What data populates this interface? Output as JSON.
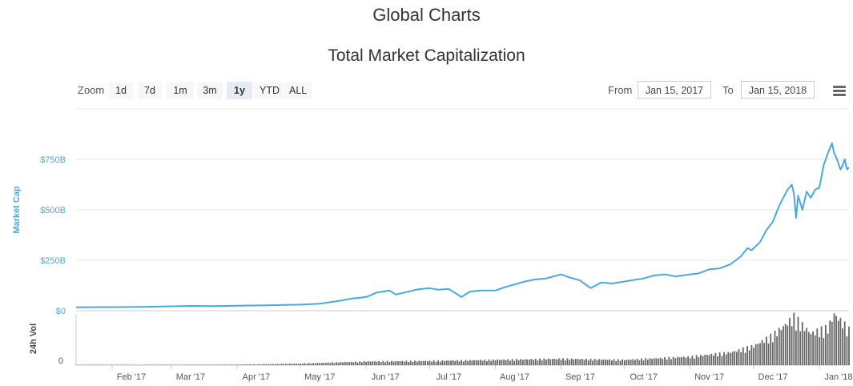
{
  "page": {
    "title": "Global Charts"
  },
  "toolbar": {
    "zoom_label": "Zoom",
    "zoom_buttons": [
      "1d",
      "7d",
      "1m",
      "3m",
      "1y",
      "YTD",
      "ALL"
    ],
    "active_zoom": "1y",
    "from_label": "From",
    "from_value": "Jan 15, 2017",
    "to_label": "To",
    "to_value": "Jan 15, 2018"
  },
  "colors": {
    "market_cap": "#4BA8DE",
    "volume": "#666666"
  },
  "chart_data": {
    "type": "line",
    "title": "Total Market Capitalization",
    "ylabel": "Market Cap",
    "y2label": "24h Vol",
    "ylim": [
      0,
      1000
    ],
    "yticks": [
      {
        "value": 0,
        "label": "$0"
      },
      {
        "value": 250,
        "label": "$250B"
      },
      {
        "value": 500,
        "label": "$500B"
      },
      {
        "value": 750,
        "label": "$750B"
      }
    ],
    "vol_tick_label": "0",
    "x_range": [
      "2017-01-15",
      "2018-01-15"
    ],
    "xticks": [
      {
        "date": "2017-02-01",
        "label": "Feb '17"
      },
      {
        "date": "2017-03-01",
        "label": "Mar '17"
      },
      {
        "date": "2017-04-01",
        "label": "Apr '17"
      },
      {
        "date": "2017-05-01",
        "label": "May '17"
      },
      {
        "date": "2017-06-01",
        "label": "Jun '17"
      },
      {
        "date": "2017-07-01",
        "label": "Jul '17"
      },
      {
        "date": "2017-08-01",
        "label": "Aug '17"
      },
      {
        "date": "2017-09-01",
        "label": "Sep '17"
      },
      {
        "date": "2017-10-01",
        "label": "Oct '17"
      },
      {
        "date": "2017-11-01",
        "label": "Nov '17"
      },
      {
        "date": "2017-12-01",
        "label": "Dec '17"
      },
      {
        "date": "2018-01-01",
        "label": "Jan '18"
      }
    ],
    "market_cap": [
      [
        "2017-01-15",
        17
      ],
      [
        "2017-02-01",
        18
      ],
      [
        "2017-02-15",
        19
      ],
      [
        "2017-03-01",
        22
      ],
      [
        "2017-03-10",
        24
      ],
      [
        "2017-03-20",
        23
      ],
      [
        "2017-04-01",
        25
      ],
      [
        "2017-04-15",
        27
      ],
      [
        "2017-05-01",
        30
      ],
      [
        "2017-05-10",
        35
      ],
      [
        "2017-05-20",
        50
      ],
      [
        "2017-05-25",
        60
      ],
      [
        "2017-06-01",
        68
      ],
      [
        "2017-06-06",
        90
      ],
      [
        "2017-06-12",
        100
      ],
      [
        "2017-06-15",
        80
      ],
      [
        "2017-06-20",
        92
      ],
      [
        "2017-06-25",
        105
      ],
      [
        "2017-07-01",
        112
      ],
      [
        "2017-07-05",
        104
      ],
      [
        "2017-07-10",
        108
      ],
      [
        "2017-07-16",
        68
      ],
      [
        "2017-07-20",
        95
      ],
      [
        "2017-07-25",
        100
      ],
      [
        "2017-08-01",
        100
      ],
      [
        "2017-08-05",
        115
      ],
      [
        "2017-08-10",
        130
      ],
      [
        "2017-08-15",
        145
      ],
      [
        "2017-08-20",
        155
      ],
      [
        "2017-08-25",
        160
      ],
      [
        "2017-09-01",
        180
      ],
      [
        "2017-09-05",
        165
      ],
      [
        "2017-09-10",
        150
      ],
      [
        "2017-09-15",
        112
      ],
      [
        "2017-09-20",
        140
      ],
      [
        "2017-09-25",
        135
      ],
      [
        "2017-10-01",
        145
      ],
      [
        "2017-10-10",
        160
      ],
      [
        "2017-10-15",
        175
      ],
      [
        "2017-10-20",
        180
      ],
      [
        "2017-10-25",
        170
      ],
      [
        "2017-11-01",
        180
      ],
      [
        "2017-11-05",
        185
      ],
      [
        "2017-11-10",
        205
      ],
      [
        "2017-11-15",
        210
      ],
      [
        "2017-11-20",
        230
      ],
      [
        "2017-11-25",
        270
      ],
      [
        "2017-11-28",
        310
      ],
      [
        "2017-11-30",
        300
      ],
      [
        "2017-12-01",
        310
      ],
      [
        "2017-12-04",
        340
      ],
      [
        "2017-12-07",
        400
      ],
      [
        "2017-12-10",
        440
      ],
      [
        "2017-12-13",
        520
      ],
      [
        "2017-12-15",
        560
      ],
      [
        "2017-12-17",
        600
      ],
      [
        "2017-12-19",
        625
      ],
      [
        "2017-12-20",
        580
      ],
      [
        "2017-12-21",
        460
      ],
      [
        "2017-12-22",
        570
      ],
      [
        "2017-12-24",
        500
      ],
      [
        "2017-12-26",
        590
      ],
      [
        "2017-12-28",
        560
      ],
      [
        "2017-12-30",
        600
      ],
      [
        "2018-01-01",
        610
      ],
      [
        "2018-01-03",
        720
      ],
      [
        "2018-01-05",
        780
      ],
      [
        "2018-01-07",
        830
      ],
      [
        "2018-01-08",
        780
      ],
      [
        "2018-01-09",
        760
      ],
      [
        "2018-01-10",
        730
      ],
      [
        "2018-01-11",
        700
      ],
      [
        "2018-01-12",
        720
      ],
      [
        "2018-01-13",
        750
      ],
      [
        "2018-01-14",
        700
      ],
      [
        "2018-01-15",
        710
      ]
    ],
    "volume": [
      [
        "2017-01-15",
        0.3
      ],
      [
        "2017-04-01",
        0.5
      ],
      [
        "2017-05-01",
        1.5
      ],
      [
        "2017-06-01",
        3.5
      ],
      [
        "2017-07-01",
        4
      ],
      [
        "2017-08-01",
        5
      ],
      [
        "2017-09-01",
        6
      ],
      [
        "2017-10-01",
        5
      ],
      [
        "2017-11-01",
        8
      ],
      [
        "2017-11-20",
        12
      ],
      [
        "2017-12-01",
        18
      ],
      [
        "2017-12-10",
        28
      ],
      [
        "2017-12-20",
        45
      ],
      [
        "2017-12-28",
        30
      ],
      [
        "2018-01-05",
        35
      ],
      [
        "2018-01-08",
        48
      ],
      [
        "2018-01-12",
        40
      ],
      [
        "2018-01-15",
        33
      ]
    ]
  }
}
